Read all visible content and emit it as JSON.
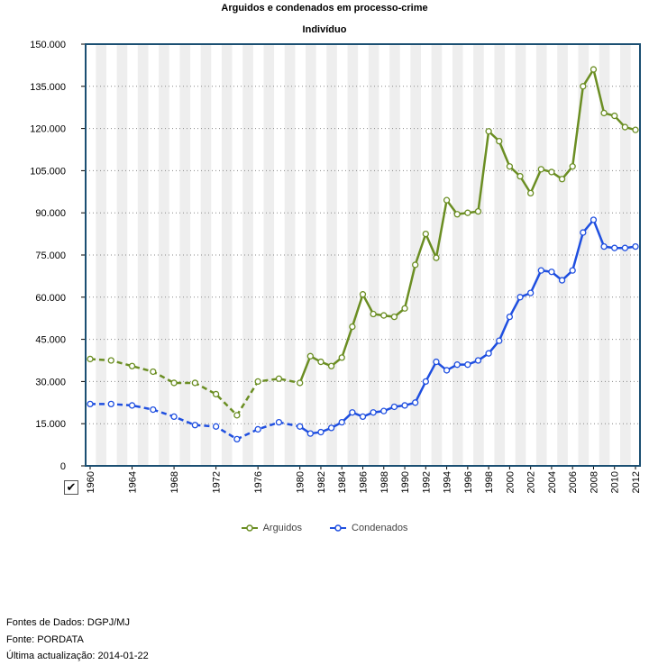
{
  "page": {
    "title": "Arguidos e condenados em processo-crime",
    "subtitle": "Indivíduo"
  },
  "footer": {
    "sources": "Fontes de Dados: DGPJ/MJ",
    "source": "Fonte: PORDATA",
    "updated": "Última actualização: 2014-01-22"
  },
  "colors": {
    "arguidos": "#6b8e23",
    "condenados": "#1f4fe0",
    "band": "#eeeeee"
  },
  "chart_data": {
    "type": "line",
    "title": "Arguidos e condenados em processo-crime",
    "subtitle": "Indivíduo",
    "xlabel": "",
    "ylabel": "",
    "ylim": [
      0,
      150000
    ],
    "yticks": [
      "0",
      "15.000",
      "30.000",
      "45.000",
      "60.000",
      "75.000",
      "90.000",
      "105.000",
      "120.000",
      "135.000",
      "150.000"
    ],
    "xtick_labels": [
      "1960",
      "1964",
      "1968",
      "1972",
      "1976",
      "1980",
      "1982",
      "1984",
      "1986",
      "1988",
      "1990",
      "1992",
      "1994",
      "1996",
      "1998",
      "2000",
      "2002",
      "2004",
      "2006",
      "2008",
      "2010",
      "2012"
    ],
    "grid": "horizontal dotted",
    "legend_position": "bottom",
    "x": [
      "1960",
      "1962",
      "1964",
      "1966",
      "1968",
      "1970",
      "1972",
      "1974",
      "1976",
      "1978",
      "1980",
      "1981",
      "1982",
      "1983",
      "1984",
      "1985",
      "1986",
      "1987",
      "1988",
      "1989",
      "1990",
      "1991",
      "1992",
      "1993",
      "1994",
      "1995",
      "1996",
      "1997",
      "1998",
      "1999",
      "2000",
      "2001",
      "2002",
      "2003",
      "2004",
      "2005",
      "2006",
      "2007",
      "2008",
      "2009",
      "2010",
      "2011",
      "2012"
    ],
    "series": [
      {
        "name": "Arguidos",
        "color": "#6b8e23",
        "values": [
          38000,
          37500,
          35500,
          33500,
          29500,
          29500,
          25500,
          18000,
          30000,
          31000,
          29500,
          39000,
          37000,
          35500,
          38500,
          49500,
          61000,
          54000,
          53500,
          53000,
          56000,
          71500,
          82500,
          74000,
          94500,
          89500,
          90000,
          90500,
          119000,
          115500,
          106500,
          103000,
          97000,
          105500,
          104500,
          102000,
          106500,
          135000,
          141000,
          125500,
          124500,
          120500,
          119500
        ]
      },
      {
        "name": "Condenados",
        "color": "#1f4fe0",
        "values": [
          22000,
          22000,
          21500,
          20000,
          17500,
          14500,
          14000,
          9500,
          13000,
          15500,
          14000,
          11500,
          12000,
          13500,
          15500,
          19000,
          17500,
          19000,
          19500,
          21000,
          21500,
          22500,
          30000,
          37000,
          34000,
          36000,
          36000,
          37500,
          40000,
          44500,
          53000,
          60000,
          61500,
          69500,
          69000,
          66000,
          69500,
          83000,
          87500,
          78000,
          77500,
          77500,
          78000
        ]
      }
    ]
  }
}
